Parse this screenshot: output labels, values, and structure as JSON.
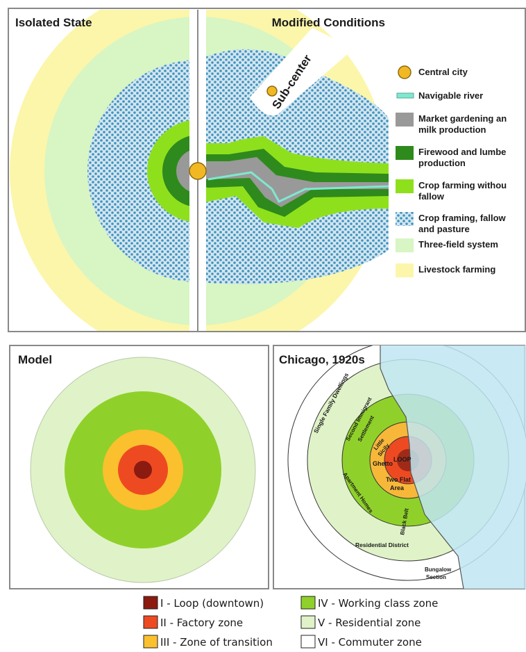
{
  "top": {
    "left_title": "Isolated State",
    "right_title": "Modified Conditions",
    "subcenter_label": "Sub-center",
    "legend": [
      {
        "lines": [
          "Central city"
        ],
        "color": "#f2b824",
        "icon": "dot-icon"
      },
      {
        "lines": [
          "Navigable river"
        ],
        "color": "#7fe8cf",
        "icon": "river-icon"
      },
      {
        "lines": [
          "Market gardening an",
          "milk production"
        ],
        "color": "#999999",
        "icon": "swatch-icon"
      },
      {
        "lines": [
          "Firewood and lumbe",
          "production"
        ],
        "color": "#2e8a1c",
        "icon": "swatch-icon"
      },
      {
        "lines": [
          "Crop farming withou",
          "fallow"
        ],
        "color": "#8fe01c",
        "icon": "swatch-icon"
      },
      {
        "lines": [
          "Crop framing, fallow",
          "and pasture"
        ],
        "color": "#d4e6ee",
        "icon": "dotted-swatch-icon"
      },
      {
        "lines": [
          "Three-field system"
        ],
        "color": "#d8f5c4",
        "icon": "swatch-icon"
      },
      {
        "lines": [
          "Livestock farming"
        ],
        "color": "#fbf6aa",
        "icon": "swatch-icon"
      }
    ]
  },
  "bottom": {
    "model_title": "Model",
    "chicago_title": "Chicago, 1920s",
    "chicago_labels": {
      "single_family": "Single Family Dwellings",
      "second_immigrant": "Second Immigrant",
      "settlement": "Settlement",
      "little": "Little",
      "sicily": "Sicily",
      "ghetto": "Ghetto",
      "loop": "LOOP",
      "two_flat": "Two Flat",
      "area": "Area",
      "apartment_homes": "Apartment Homes",
      "black_belt": "Black Belt",
      "residential_district": "Residential District",
      "bungalow": "Bungalow",
      "section": "Section"
    },
    "legend": [
      {
        "label": "I - Loop (downtown)",
        "color": "#8b1a10"
      },
      {
        "label": "II - Factory zone",
        "color": "#ee4a22"
      },
      {
        "label": "III - Zone of transition",
        "color": "#fbc02d"
      },
      {
        "label": "IV - Working class zone",
        "color": "#8fd12a"
      },
      {
        "label": "V - Residential zone",
        "color": "#e0f3c8"
      },
      {
        "label": "VI - Commuter zone",
        "color": "#ffffff"
      }
    ]
  }
}
